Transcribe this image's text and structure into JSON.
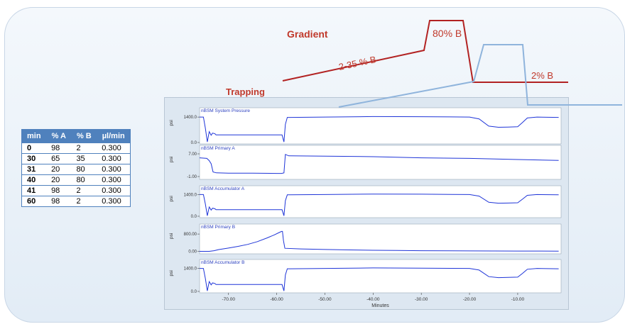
{
  "overlay": {
    "gradient_title": "Gradient",
    "gradient_ramp_label": "2-35 % B",
    "gradient_high_label": "80% B",
    "gradient_low_label": "2% B",
    "trapping_title": "Trapping",
    "colors": {
      "red": "#c0392b",
      "gradient_line": "#b22222",
      "trap_line": "#8fb4dc"
    }
  },
  "table": {
    "headers": [
      "min",
      "% A",
      "% B",
      "µl/min"
    ],
    "rows": [
      [
        "0",
        "98",
        "2",
        "0.300"
      ],
      [
        "30",
        "65",
        "35",
        "0.300"
      ],
      [
        "31",
        "20",
        "80",
        "0.300"
      ],
      [
        "40",
        "20",
        "80",
        "0.300"
      ],
      [
        "41",
        "98",
        "2",
        "0.300"
      ],
      [
        "60",
        "98",
        "2",
        "0.300"
      ]
    ],
    "header_color": "#4f81bd"
  },
  "chart_data": {
    "type": "line",
    "xlabel": "Minutes",
    "x_ticks": [
      "-70.00",
      "-60.00",
      "-50.00",
      "-40.00",
      "-30.00",
      "-20.00",
      "-10.00"
    ],
    "xlim": [
      -76,
      -1
    ],
    "line_color": "#1f35d8",
    "panels": [
      {
        "title": "nBSM System Pressure",
        "ylabel": "psi",
        "y_ticks": [
          "1400.0",
          "0.0"
        ],
        "ylim": [
          0,
          1600
        ],
        "x": [
          -76,
          -75.2,
          -74.8,
          -74.4,
          -74.0,
          -73.6,
          -73.3,
          -72.8,
          -72.6,
          -70,
          -65,
          -60,
          -58.9,
          -58.5,
          -58.2,
          -57.8,
          -57.2,
          -50,
          -40,
          -30,
          -20,
          -18,
          -16,
          -14,
          -12,
          -10,
          -9,
          -8,
          -6,
          -1.5
        ],
        "y": [
          1400,
          1400,
          800,
          30,
          600,
          400,
          520,
          480,
          420,
          420,
          420,
          420,
          420,
          30,
          1000,
          1380,
          1380,
          1400,
          1430,
          1420,
          1400,
          1300,
          900,
          840,
          850,
          870,
          1100,
          1350,
          1400,
          1380
        ]
      },
      {
        "title": "nBSM Primary A",
        "ylabel": "psi",
        "y_ticks": [
          "7.00",
          "-1.00"
        ],
        "ylim": [
          -1.5,
          8
        ],
        "x": [
          -76,
          -74.5,
          -74.0,
          -73.6,
          -73.2,
          -72.5,
          -70,
          -65,
          -60,
          -59,
          -58.5,
          -58.2,
          -57.5,
          -50,
          -40,
          -30,
          -20,
          -10,
          -1.5
        ],
        "y": [
          5.6,
          5.4,
          4.6,
          3.5,
          0.6,
          0.3,
          0.2,
          0.2,
          0.1,
          0.1,
          0.3,
          6.8,
          6.3,
          6.2,
          6.0,
          5.6,
          5.4,
          5.0,
          4.7
        ]
      },
      {
        "title": "nBSM Accumulator A",
        "ylabel": "psi",
        "y_ticks": [
          "1400.0",
          "0.0"
        ],
        "ylim": [
          0,
          1600
        ],
        "x": [
          -76,
          -75.2,
          -74.8,
          -74.4,
          -74.0,
          -73.6,
          -73.3,
          -72.8,
          -72.6,
          -70,
          -65,
          -60,
          -58.9,
          -58.5,
          -58.2,
          -57.8,
          -57.2,
          -50,
          -40,
          -30,
          -20,
          -18,
          -16,
          -14,
          -12,
          -10,
          -9,
          -8,
          -6,
          -1.5
        ],
        "y": [
          1400,
          1400,
          800,
          30,
          600,
          400,
          520,
          480,
          420,
          420,
          420,
          420,
          420,
          30,
          1000,
          1380,
          1380,
          1400,
          1430,
          1420,
          1400,
          1300,
          900,
          840,
          850,
          870,
          1100,
          1350,
          1400,
          1380
        ]
      },
      {
        "title": "nBSM Primary B",
        "ylabel": "psi",
        "y_ticks": [
          "800.00",
          "0.00"
        ],
        "ylim": [
          -50,
          1000
        ],
        "x": [
          -76,
          -74,
          -73,
          -72,
          -70,
          -68,
          -66,
          -64,
          -62,
          -60.5,
          -59.5,
          -59,
          -58.8,
          -58.6,
          -58.3,
          -55,
          -50,
          -45,
          -40,
          -35,
          -30,
          -20,
          -10,
          -1.5
        ],
        "y": [
          0,
          0,
          30,
          80,
          150,
          230,
          320,
          450,
          620,
          760,
          870,
          920,
          920,
          500,
          140,
          110,
          85,
          65,
          50,
          40,
          30,
          20,
          12,
          8
        ]
      },
      {
        "title": "nBSM Accumulator B",
        "ylabel": "psi",
        "y_ticks": [
          "1400.0",
          "0.0"
        ],
        "ylim": [
          0,
          1600
        ],
        "x": [
          -76,
          -75.2,
          -74.8,
          -74.4,
          -74.0,
          -73.6,
          -73.3,
          -72.8,
          -72.6,
          -70,
          -65,
          -60,
          -58.9,
          -58.5,
          -58.2,
          -57.8,
          -57.2,
          -50,
          -40,
          -30,
          -20,
          -18,
          -16,
          -14,
          -12,
          -10,
          -9,
          -8,
          -6,
          -1.5
        ],
        "y": [
          1400,
          1400,
          800,
          30,
          600,
          400,
          520,
          480,
          420,
          420,
          420,
          420,
          420,
          30,
          1000,
          1380,
          1380,
          1400,
          1430,
          1420,
          1400,
          1300,
          900,
          840,
          850,
          870,
          1100,
          1350,
          1400,
          1380
        ]
      }
    ]
  }
}
